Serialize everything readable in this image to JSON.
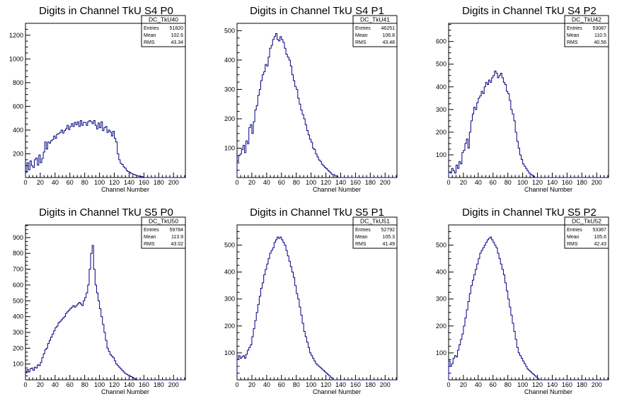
{
  "line_color": "#000080",
  "chart_data": [
    {
      "type": "histogram",
      "title": "Digits in Channel TkU S4 P0",
      "xlabel": "Channel Number",
      "ylabel": "",
      "xlim": [
        0,
        216
      ],
      "ylim": [
        0,
        1300
      ],
      "xticks": [
        0,
        20,
        40,
        60,
        80,
        100,
        120,
        140,
        160,
        180,
        200
      ],
      "yticks": [
        200,
        400,
        600,
        800,
        1000,
        1200
      ],
      "stats": {
        "name": "DC_TkU40",
        "entries": "51820",
        "mean": "102.6",
        "rms": "43.34"
      },
      "series": [
        {
          "x_start": 0,
          "bin_width": 2,
          "values": [
            45,
            125,
            65,
            140,
            100,
            85,
            150,
            165,
            105,
            190,
            125,
            160,
            215,
            300,
            240,
            300,
            290,
            310,
            320,
            350,
            330,
            365,
            370,
            380,
            400,
            375,
            395,
            410,
            440,
            405,
            430,
            455,
            430,
            465,
            445,
            470,
            430,
            480,
            440,
            465,
            465,
            440,
            470,
            480,
            470,
            455,
            480,
            440,
            410,
            460,
            420,
            470,
            395,
            420,
            430,
            380,
            400,
            385,
            350,
            390,
            330,
            300,
            200,
            150,
            120,
            110,
            90,
            80,
            60,
            50,
            45,
            35,
            30,
            25,
            20,
            15,
            12,
            10,
            8,
            5,
            0,
            0,
            0,
            0,
            0,
            0,
            0,
            0,
            0,
            0,
            0,
            0,
            0,
            0,
            0,
            0,
            0,
            0,
            0,
            0,
            0,
            0,
            0,
            0,
            0,
            0,
            0,
            0,
            0,
            0
          ]
        }
      ]
    },
    {
      "type": "histogram",
      "title": "Digits in Channel TkU S4 P1",
      "xlabel": "Channel Number",
      "ylabel": "",
      "xlim": [
        0,
        216
      ],
      "ylim": [
        0,
        525
      ],
      "xticks": [
        0,
        20,
        40,
        60,
        80,
        100,
        120,
        140,
        160,
        180,
        200
      ],
      "yticks": [
        100,
        200,
        300,
        400,
        500
      ],
      "stats": {
        "name": "DC_TkU41",
        "entries": "46251",
        "mean": "106.8",
        "rms": "43.48"
      },
      "series": [
        {
          "x_start": 0,
          "bin_width": 2,
          "values": [
            55,
            75,
            80,
            95,
            110,
            85,
            125,
            115,
            170,
            180,
            150,
            190,
            230,
            245,
            280,
            300,
            330,
            350,
            360,
            385,
            380,
            410,
            440,
            450,
            470,
            480,
            490,
            470,
            465,
            480,
            470,
            460,
            440,
            420,
            410,
            400,
            380,
            350,
            330,
            310,
            300,
            270,
            250,
            230,
            215,
            200,
            180,
            160,
            145,
            130,
            120,
            100,
            95,
            80,
            70,
            60,
            55,
            45,
            40,
            35,
            30,
            25,
            20,
            15,
            10,
            10,
            5,
            5,
            0,
            0,
            0,
            0,
            0,
            0,
            0,
            0,
            0,
            0,
            0,
            0,
            0,
            0,
            0,
            0,
            0,
            0,
            0,
            0,
            0,
            0,
            0,
            0,
            0,
            0,
            0,
            0,
            0,
            0,
            0,
            0,
            0,
            0,
            0,
            0,
            0,
            0,
            0,
            0,
            0,
            0
          ]
        }
      ]
    },
    {
      "type": "histogram",
      "title": "Digits in Channel TkU S4 P2",
      "xlabel": "Channel Number",
      "ylabel": "",
      "xlim": [
        0,
        216
      ],
      "ylim": [
        0,
        680
      ],
      "xticks": [
        0,
        20,
        40,
        60,
        80,
        100,
        120,
        140,
        160,
        180,
        200
      ],
      "yticks": [
        100,
        200,
        300,
        400,
        500,
        600
      ],
      "stats": {
        "name": "DC_TkU42",
        "entries": "53087",
        "mean": "110.5",
        "rms": "40.56"
      },
      "series": [
        {
          "x_start": 0,
          "bin_width": 2,
          "values": [
            25,
            20,
            40,
            30,
            20,
            55,
            40,
            70,
            60,
            110,
            120,
            150,
            170,
            130,
            200,
            250,
            280,
            310,
            300,
            330,
            350,
            360,
            380,
            370,
            400,
            420,
            410,
            430,
            420,
            440,
            450,
            470,
            460,
            440,
            450,
            460,
            440,
            420,
            410,
            380,
            370,
            340,
            300,
            280,
            250,
            200,
            160,
            130,
            100,
            80,
            60,
            50,
            40,
            30,
            20,
            15,
            10,
            5,
            0,
            0,
            0,
            0,
            0,
            0,
            0,
            0,
            0,
            0,
            0,
            0,
            0,
            0,
            0,
            0,
            0,
            0,
            0,
            0,
            0,
            0,
            0,
            0,
            0,
            0,
            0,
            0,
            0,
            0,
            0,
            0,
            0,
            0,
            0,
            0,
            0,
            0,
            0,
            0,
            0,
            0,
            0,
            0,
            0,
            0,
            0,
            0,
            0,
            0,
            0,
            0
          ]
        }
      ]
    },
    {
      "type": "histogram",
      "title": "Digits in Channel TkU S5 P0",
      "xlabel": "Channel Number",
      "ylabel": "",
      "xlim": [
        0,
        216
      ],
      "ylim": [
        0,
        980
      ],
      "xticks": [
        0,
        20,
        40,
        60,
        80,
        100,
        120,
        140,
        160,
        180,
        200
      ],
      "yticks": [
        100,
        200,
        300,
        400,
        500,
        600,
        700,
        800,
        900
      ],
      "stats": {
        "name": "DC_TkU50",
        "entries": "59784",
        "mean": "113.9",
        "rms": "43.02"
      },
      "series": [
        {
          "x_start": 0,
          "bin_width": 2,
          "values": [
            45,
            65,
            50,
            70,
            75,
            60,
            80,
            75,
            95,
            90,
            110,
            140,
            165,
            190,
            200,
            230,
            250,
            270,
            290,
            310,
            330,
            340,
            360,
            370,
            380,
            390,
            400,
            420,
            430,
            440,
            450,
            460,
            470,
            460,
            470,
            480,
            490,
            480,
            470,
            500,
            520,
            550,
            600,
            700,
            800,
            850,
            700,
            600,
            550,
            500,
            450,
            400,
            350,
            300,
            250,
            200,
            180,
            160,
            150,
            140,
            120,
            100,
            90,
            80,
            70,
            60,
            50,
            40,
            35,
            30,
            25,
            20,
            15,
            10,
            5,
            0,
            0,
            0,
            0,
            0,
            0,
            0,
            0,
            0,
            0,
            0,
            0,
            0,
            0,
            0,
            0,
            0,
            0,
            0,
            0,
            0,
            0,
            0,
            0,
            0,
            0,
            0,
            0,
            0,
            0,
            0,
            0,
            0,
            0,
            0
          ]
        }
      ]
    },
    {
      "type": "histogram",
      "title": "Digits in Channel TkU S5 P1",
      "xlabel": "Channel Number",
      "ylabel": "",
      "xlim": [
        0,
        216
      ],
      "ylim": [
        0,
        575
      ],
      "xticks": [
        0,
        20,
        40,
        60,
        80,
        100,
        120,
        140,
        160,
        180,
        200
      ],
      "yticks": [
        100,
        200,
        300,
        400,
        500
      ],
      "stats": {
        "name": "DC_TkU51",
        "entries": "52792",
        "mean": "105.3",
        "rms": "41.49"
      },
      "series": [
        {
          "x_start": 0,
          "bin_width": 2,
          "values": [
            75,
            90,
            80,
            85,
            90,
            80,
            95,
            110,
            120,
            130,
            160,
            190,
            220,
            250,
            280,
            310,
            340,
            360,
            390,
            410,
            430,
            450,
            470,
            480,
            490,
            510,
            520,
            530,
            525,
            530,
            520,
            510,
            500,
            480,
            460,
            440,
            420,
            400,
            380,
            350,
            320,
            300,
            270,
            240,
            210,
            180,
            160,
            140,
            120,
            100,
            90,
            80,
            70,
            60,
            55,
            50,
            45,
            40,
            35,
            30,
            25,
            20,
            15,
            10,
            5,
            0,
            0,
            0,
            0,
            0,
            0,
            0,
            0,
            0,
            0,
            0,
            0,
            0,
            0,
            0,
            0,
            0,
            0,
            0,
            0,
            0,
            0,
            0,
            0,
            0,
            0,
            0,
            0,
            0,
            0,
            0,
            0,
            0,
            0,
            0,
            0,
            0,
            0,
            0,
            0,
            0,
            0,
            0,
            0,
            0
          ]
        }
      ]
    },
    {
      "type": "histogram",
      "title": "Digits in Channel TkU S5 P2",
      "xlabel": "Channel Number",
      "ylabel": "",
      "xlim": [
        0,
        216
      ],
      "ylim": [
        0,
        575
      ],
      "xticks": [
        0,
        20,
        40,
        60,
        80,
        100,
        120,
        140,
        160,
        180,
        200
      ],
      "yticks": [
        100,
        200,
        300,
        400,
        500
      ],
      "stats": {
        "name": "DC_TkU52",
        "entries": "53367",
        "mean": "105.6",
        "rms": "42.43"
      },
      "series": [
        {
          "x_start": 0,
          "bin_width": 2,
          "values": [
            70,
            50,
            60,
            80,
            90,
            85,
            110,
            130,
            150,
            170,
            200,
            230,
            260,
            290,
            320,
            350,
            370,
            390,
            410,
            430,
            450,
            470,
            480,
            490,
            500,
            510,
            520,
            525,
            530,
            520,
            510,
            500,
            490,
            470,
            450,
            430,
            410,
            390,
            360,
            330,
            300,
            270,
            240,
            210,
            180,
            150,
            120,
            100,
            90,
            80,
            70,
            60,
            50,
            40,
            35,
            30,
            25,
            20,
            15,
            10,
            5,
            0,
            0,
            0,
            0,
            0,
            0,
            0,
            0,
            0,
            0,
            0,
            0,
            0,
            0,
            0,
            0,
            0,
            0,
            0,
            0,
            0,
            0,
            0,
            0,
            0,
            0,
            0,
            0,
            0,
            0,
            0,
            0,
            0,
            0,
            0,
            0,
            0,
            0,
            0,
            0,
            0,
            0,
            0,
            0,
            0,
            0,
            0,
            0,
            0
          ]
        }
      ]
    }
  ]
}
